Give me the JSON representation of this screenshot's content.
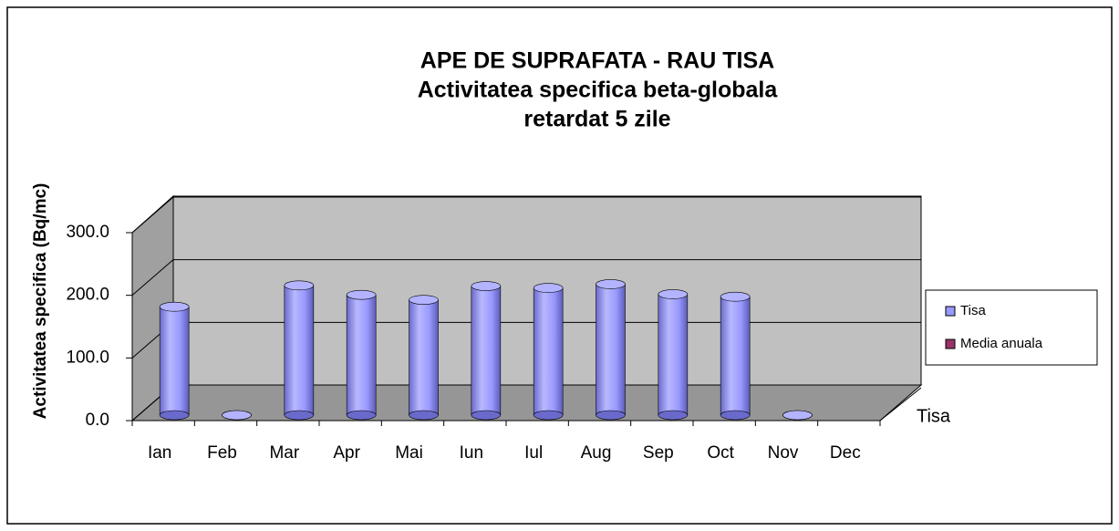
{
  "chart_data": {
    "type": "bar3d",
    "title": [
      "APE DE SUPRAFATA - RAU TISA",
      "Activitatea specifica beta-globala",
      "retardat 5 zile"
    ],
    "y_label": "Activitatea specifica (Bq/mc)",
    "categories": [
      "Ian",
      "Feb",
      "Mar",
      "Apr",
      "Mai",
      "Iun",
      "Iul",
      "Aug",
      "Sep",
      "Oct",
      "Nov",
      "Dec"
    ],
    "depth_categories": [
      "Tisa"
    ],
    "series": [
      {
        "name": "Tisa",
        "color": "#9999ff",
        "values": [
          173,
          0,
          207,
          192,
          184,
          206,
          203,
          209,
          193,
          189,
          0,
          null
        ]
      },
      {
        "name": "Media anuala",
        "color": "#993366",
        "values": [
          null,
          null,
          null,
          null,
          null,
          null,
          null,
          null,
          null,
          null,
          null,
          null
        ]
      }
    ],
    "ylim": [
      0,
      300
    ],
    "yticks": [
      {
        "value": 0,
        "label": "0.0"
      },
      {
        "value": 100,
        "label": "100.0"
      },
      {
        "value": 200,
        "label": "200.0"
      },
      {
        "value": 300,
        "label": "300.0"
      }
    ],
    "grid": true,
    "legend": "right"
  }
}
